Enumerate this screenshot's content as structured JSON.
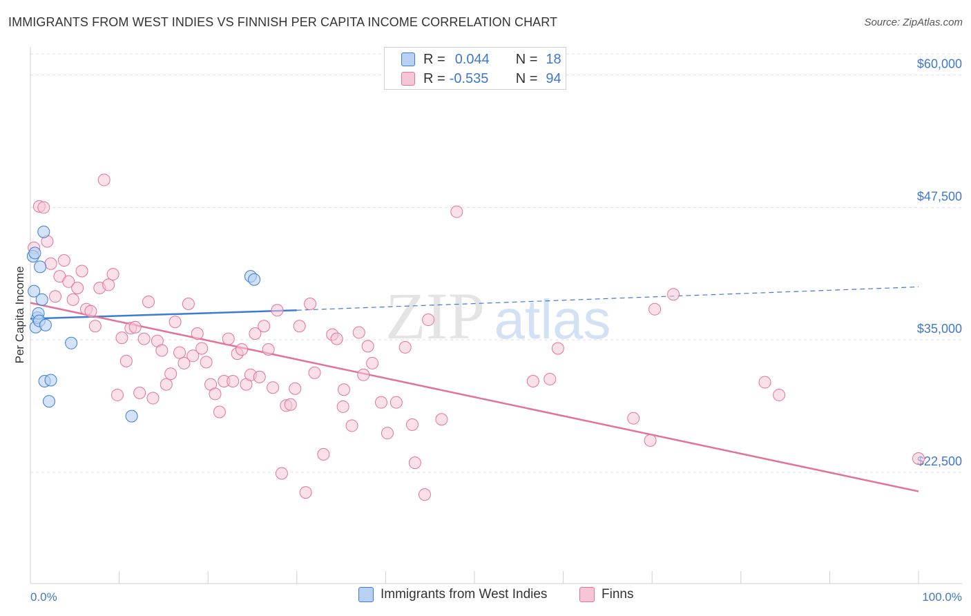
{
  "title": "IMMIGRANTS FROM WEST INDIES VS FINNISH PER CAPITA INCOME CORRELATION CHART",
  "source": "Source: ZipAtlas.com",
  "colors": {
    "blue": "#3b7bd4",
    "blue_fill": "#b8d1f2",
    "pink": "#e3729a",
    "pink_fill": "#f6c6d6",
    "axis_text": "#3f77c9",
    "grid": "#dedede"
  },
  "legend": {
    "r_label": "R =",
    "n_label": "N =",
    "series": [
      {
        "name": "Immigrants from West Indies",
        "r": "0.044",
        "n": "18"
      },
      {
        "name": "Finns",
        "r": "-0.535",
        "n": "94"
      }
    ]
  },
  "chart_data": {
    "type": "scatter",
    "xlabel": "",
    "ylabel": "Per Capita Income",
    "xlim": [
      0,
      100
    ],
    "ylim": [
      12000,
      62000
    ],
    "x_tick_labels": [
      "0.0%",
      "100.0%"
    ],
    "y_ticks": [
      22500,
      35000,
      47500,
      60000
    ],
    "y_tick_labels": [
      "$22,500",
      "$35,000",
      "$47,500",
      "$60,000"
    ],
    "grid": true,
    "watermark": "ZIPatlas",
    "series": [
      {
        "name": "Immigrants from West Indies",
        "color": "#3b7bd4",
        "trend": {
          "x0": 0,
          "y0": 37000,
          "x1_solid": 30,
          "y1_solid": 37800,
          "x1": 100,
          "y1": 40000
        },
        "points": [
          [
            0.3,
            42900
          ],
          [
            0.5,
            43200
          ],
          [
            0.4,
            39600
          ],
          [
            0.6,
            36200
          ],
          [
            0.8,
            37100
          ],
          [
            0.9,
            37500
          ],
          [
            1.0,
            36800
          ],
          [
            1.1,
            41900
          ],
          [
            1.3,
            38800
          ],
          [
            1.5,
            45200
          ],
          [
            1.7,
            36400
          ],
          [
            1.6,
            31100
          ],
          [
            2.1,
            29200
          ],
          [
            2.3,
            31200
          ],
          [
            4.6,
            34700
          ],
          [
            11.4,
            27800
          ],
          [
            24.8,
            41000
          ],
          [
            25.2,
            40700
          ]
        ]
      },
      {
        "name": "Finns",
        "color": "#e3729a",
        "trend": {
          "x0": 0,
          "y0": 38500,
          "x1": 100,
          "y1": 20700
        },
        "points": [
          [
            0.4,
            43700
          ],
          [
            1.0,
            47600
          ],
          [
            1.5,
            47500
          ],
          [
            1.9,
            44300
          ],
          [
            2.3,
            42200
          ],
          [
            2.8,
            39100
          ],
          [
            3.3,
            41000
          ],
          [
            3.8,
            42500
          ],
          [
            4.3,
            40500
          ],
          [
            4.8,
            38800
          ],
          [
            5.3,
            39900
          ],
          [
            5.8,
            41500
          ],
          [
            6.3,
            37900
          ],
          [
            6.8,
            37700
          ],
          [
            7.3,
            36300
          ],
          [
            7.8,
            39900
          ],
          [
            8.3,
            50100
          ],
          [
            8.8,
            40200
          ],
          [
            9.3,
            41200
          ],
          [
            9.8,
            29800
          ],
          [
            10.3,
            35200
          ],
          [
            10.8,
            33000
          ],
          [
            11.3,
            36100
          ],
          [
            11.8,
            36200
          ],
          [
            12.3,
            30000
          ],
          [
            12.8,
            35100
          ],
          [
            13.3,
            38600
          ],
          [
            13.8,
            29500
          ],
          [
            14.3,
            34900
          ],
          [
            14.8,
            34000
          ],
          [
            15.3,
            30800
          ],
          [
            15.8,
            31800
          ],
          [
            16.3,
            36700
          ],
          [
            16.8,
            33800
          ],
          [
            17.3,
            32800
          ],
          [
            17.8,
            38400
          ],
          [
            18.3,
            33500
          ],
          [
            18.8,
            35600
          ],
          [
            19.3,
            34200
          ],
          [
            19.8,
            32900
          ],
          [
            20.3,
            30800
          ],
          [
            20.8,
            29900
          ],
          [
            21.3,
            28200
          ],
          [
            21.8,
            31100
          ],
          [
            22.3,
            35100
          ],
          [
            22.8,
            31100
          ],
          [
            23.3,
            33700
          ],
          [
            23.8,
            34100
          ],
          [
            24.3,
            30800
          ],
          [
            24.8,
            31700
          ],
          [
            25.3,
            35600
          ],
          [
            25.8,
            31500
          ],
          [
            26.3,
            36300
          ],
          [
            26.8,
            34100
          ],
          [
            27.3,
            30500
          ],
          [
            27.8,
            37800
          ],
          [
            28.3,
            22400
          ],
          [
            28.8,
            28800
          ],
          [
            29.3,
            28900
          ],
          [
            29.8,
            30400
          ],
          [
            30.3,
            36300
          ],
          [
            31.5,
            38400
          ],
          [
            31.0,
            20600
          ],
          [
            32.0,
            31900
          ],
          [
            33.0,
            24200
          ],
          [
            34.0,
            35500
          ],
          [
            34.5,
            35100
          ],
          [
            35.2,
            28700
          ],
          [
            35.3,
            30300
          ],
          [
            36.2,
            26900
          ],
          [
            37.0,
            35700
          ],
          [
            37.5,
            31700
          ],
          [
            38.0,
            34400
          ],
          [
            38.5,
            32800
          ],
          [
            39.5,
            29100
          ],
          [
            40.2,
            26200
          ],
          [
            41.2,
            29100
          ],
          [
            42.2,
            34300
          ],
          [
            43.3,
            23400
          ],
          [
            43.0,
            27000
          ],
          [
            44.4,
            20400
          ],
          [
            44.8,
            36900
          ],
          [
            46.3,
            27500
          ],
          [
            48.0,
            47100
          ],
          [
            56.6,
            31100
          ],
          [
            58.5,
            31300
          ],
          [
            59.4,
            34200
          ],
          [
            67.9,
            27600
          ],
          [
            69.8,
            25500
          ],
          [
            70.3,
            37900
          ],
          [
            72.4,
            39300
          ],
          [
            82.7,
            31000
          ],
          [
            84.3,
            29800
          ],
          [
            100.0,
            23800
          ]
        ]
      }
    ]
  }
}
